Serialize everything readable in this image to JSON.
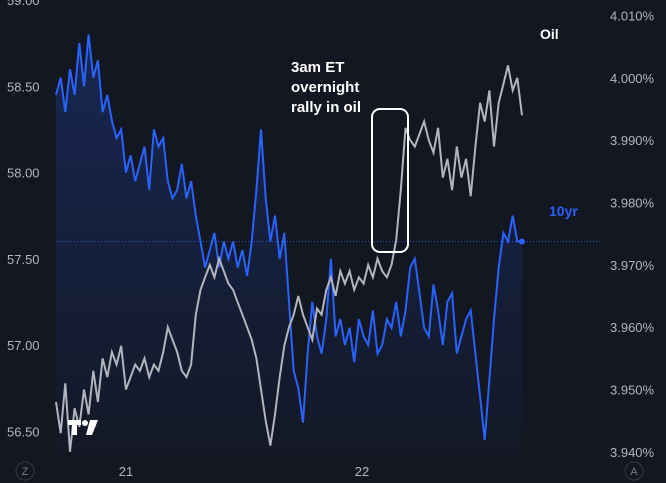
{
  "chart_data": {
    "type": "line",
    "left_axis": {
      "min": 56.2,
      "max": 59.0,
      "ticks": [
        "59.00",
        "58.50",
        "58.00",
        "57.50",
        "57.00",
        "56.50"
      ],
      "tick_values": [
        59.0,
        58.5,
        58.0,
        57.5,
        57.0,
        56.5
      ]
    },
    "right_axis": {
      "min": 3.935,
      "max": 4.0125,
      "ticks": [
        "4.010%",
        "4.000%",
        "3.990%",
        "3.980%",
        "3.970%",
        "3.960%",
        "3.950%",
        "3.940%"
      ],
      "tick_values": [
        4.01,
        4.0,
        3.99,
        3.98,
        3.97,
        3.96,
        3.95,
        3.94
      ]
    },
    "x_labels": [
      "21",
      "22"
    ],
    "annotation": [
      "3am ET",
      "overnight",
      "rally in oil"
    ],
    "series": [
      {
        "name": "10yr",
        "axis": "left",
        "color": "#2962ff",
        "last_value": 57.6,
        "points": [
          [
            0.0,
            58.45
          ],
          [
            0.01,
            58.55
          ],
          [
            0.02,
            58.35
          ],
          [
            0.03,
            58.6
          ],
          [
            0.04,
            58.45
          ],
          [
            0.05,
            58.75
          ],
          [
            0.06,
            58.5
          ],
          [
            0.07,
            58.8
          ],
          [
            0.08,
            58.55
          ],
          [
            0.09,
            58.65
          ],
          [
            0.1,
            58.35
          ],
          [
            0.11,
            58.45
          ],
          [
            0.12,
            58.3
          ],
          [
            0.13,
            58.2
          ],
          [
            0.14,
            58.25
          ],
          [
            0.15,
            58.0
          ],
          [
            0.16,
            58.1
          ],
          [
            0.17,
            57.95
          ],
          [
            0.18,
            58.05
          ],
          [
            0.19,
            58.15
          ],
          [
            0.2,
            57.9
          ],
          [
            0.21,
            58.25
          ],
          [
            0.22,
            58.15
          ],
          [
            0.23,
            58.2
          ],
          [
            0.24,
            57.95
          ],
          [
            0.25,
            57.85
          ],
          [
            0.26,
            57.9
          ],
          [
            0.27,
            58.05
          ],
          [
            0.28,
            57.85
          ],
          [
            0.29,
            57.95
          ],
          [
            0.3,
            57.75
          ],
          [
            0.31,
            57.6
          ],
          [
            0.32,
            57.45
          ],
          [
            0.33,
            57.55
          ],
          [
            0.34,
            57.65
          ],
          [
            0.35,
            57.45
          ],
          [
            0.36,
            57.6
          ],
          [
            0.37,
            57.5
          ],
          [
            0.38,
            57.6
          ],
          [
            0.39,
            57.45
          ],
          [
            0.4,
            57.55
          ],
          [
            0.41,
            57.4
          ],
          [
            0.42,
            57.6
          ],
          [
            0.43,
            57.9
          ],
          [
            0.44,
            58.25
          ],
          [
            0.45,
            57.85
          ],
          [
            0.46,
            57.6
          ],
          [
            0.47,
            57.75
          ],
          [
            0.48,
            57.5
          ],
          [
            0.49,
            57.65
          ],
          [
            0.5,
            57.25
          ],
          [
            0.51,
            56.85
          ],
          [
            0.52,
            56.75
          ],
          [
            0.53,
            56.55
          ],
          [
            0.54,
            56.95
          ],
          [
            0.55,
            57.25
          ],
          [
            0.56,
            57.05
          ],
          [
            0.57,
            56.95
          ],
          [
            0.58,
            57.15
          ],
          [
            0.59,
            57.5
          ],
          [
            0.6,
            57.05
          ],
          [
            0.61,
            57.15
          ],
          [
            0.62,
            57.0
          ],
          [
            0.63,
            57.1
          ],
          [
            0.64,
            56.9
          ],
          [
            0.65,
            57.15
          ],
          [
            0.66,
            57.05
          ],
          [
            0.67,
            57.0
          ],
          [
            0.68,
            57.2
          ],
          [
            0.69,
            56.95
          ],
          [
            0.7,
            57.0
          ],
          [
            0.71,
            57.15
          ],
          [
            0.72,
            57.1
          ],
          [
            0.73,
            57.25
          ],
          [
            0.74,
            57.05
          ],
          [
            0.75,
            57.2
          ],
          [
            0.76,
            57.45
          ],
          [
            0.77,
            57.5
          ],
          [
            0.78,
            57.3
          ],
          [
            0.79,
            57.1
          ],
          [
            0.8,
            57.05
          ],
          [
            0.81,
            57.35
          ],
          [
            0.82,
            57.2
          ],
          [
            0.83,
            57.0
          ],
          [
            0.84,
            57.25
          ],
          [
            0.85,
            57.3
          ],
          [
            0.86,
            56.95
          ],
          [
            0.87,
            57.05
          ],
          [
            0.88,
            57.15
          ],
          [
            0.89,
            57.2
          ],
          [
            0.9,
            56.95
          ],
          [
            0.91,
            56.7
          ],
          [
            0.92,
            56.45
          ],
          [
            0.93,
            56.8
          ],
          [
            0.94,
            57.15
          ],
          [
            0.95,
            57.45
          ],
          [
            0.96,
            57.65
          ],
          [
            0.97,
            57.6
          ],
          [
            0.98,
            57.75
          ],
          [
            0.99,
            57.6
          ],
          [
            1.0,
            57.6
          ]
        ]
      },
      {
        "name": "Oil",
        "axis": "right",
        "color": "#b2b5be",
        "points": [
          [
            0.0,
            3.948
          ],
          [
            0.01,
            3.943
          ],
          [
            0.02,
            3.951
          ],
          [
            0.03,
            3.94
          ],
          [
            0.04,
            3.947
          ],
          [
            0.05,
            3.944
          ],
          [
            0.06,
            3.95
          ],
          [
            0.07,
            3.946
          ],
          [
            0.08,
            3.953
          ],
          [
            0.09,
            3.948
          ],
          [
            0.1,
            3.955
          ],
          [
            0.11,
            3.952
          ],
          [
            0.12,
            3.956
          ],
          [
            0.13,
            3.954
          ],
          [
            0.14,
            3.957
          ],
          [
            0.15,
            3.95
          ],
          [
            0.16,
            3.952
          ],
          [
            0.17,
            3.954
          ],
          [
            0.18,
            3.953
          ],
          [
            0.19,
            3.955
          ],
          [
            0.2,
            3.952
          ],
          [
            0.21,
            3.954
          ],
          [
            0.22,
            3.953
          ],
          [
            0.23,
            3.956
          ],
          [
            0.24,
            3.96
          ],
          [
            0.25,
            3.958
          ],
          [
            0.26,
            3.956
          ],
          [
            0.27,
            3.953
          ],
          [
            0.28,
            3.952
          ],
          [
            0.29,
            3.954
          ],
          [
            0.3,
            3.962
          ],
          [
            0.31,
            3.966
          ],
          [
            0.32,
            3.968
          ],
          [
            0.33,
            3.97
          ],
          [
            0.34,
            3.968
          ],
          [
            0.35,
            3.971
          ],
          [
            0.36,
            3.969
          ],
          [
            0.37,
            3.967
          ],
          [
            0.38,
            3.966
          ],
          [
            0.39,
            3.964
          ],
          [
            0.4,
            3.962
          ],
          [
            0.41,
            3.96
          ],
          [
            0.42,
            3.958
          ],
          [
            0.43,
            3.955
          ],
          [
            0.44,
            3.95
          ],
          [
            0.45,
            3.945
          ],
          [
            0.46,
            3.941
          ],
          [
            0.47,
            3.946
          ],
          [
            0.48,
            3.952
          ],
          [
            0.49,
            3.957
          ],
          [
            0.5,
            3.96
          ],
          [
            0.51,
            3.962
          ],
          [
            0.52,
            3.965
          ],
          [
            0.53,
            3.962
          ],
          [
            0.54,
            3.96
          ],
          [
            0.55,
            3.958
          ],
          [
            0.56,
            3.963
          ],
          [
            0.57,
            3.962
          ],
          [
            0.58,
            3.966
          ],
          [
            0.59,
            3.968
          ],
          [
            0.6,
            3.965
          ],
          [
            0.61,
            3.969
          ],
          [
            0.62,
            3.967
          ],
          [
            0.63,
            3.969
          ],
          [
            0.64,
            3.966
          ],
          [
            0.65,
            3.968
          ],
          [
            0.66,
            3.967
          ],
          [
            0.67,
            3.97
          ],
          [
            0.68,
            3.968
          ],
          [
            0.69,
            3.971
          ],
          [
            0.7,
            3.969
          ],
          [
            0.71,
            3.968
          ],
          [
            0.72,
            3.97
          ],
          [
            0.73,
            3.974
          ],
          [
            0.74,
            3.982
          ],
          [
            0.75,
            3.992
          ],
          [
            0.76,
            3.99
          ],
          [
            0.77,
            3.989
          ],
          [
            0.78,
            3.991
          ],
          [
            0.79,
            3.993
          ],
          [
            0.8,
            3.99
          ],
          [
            0.81,
            3.988
          ],
          [
            0.82,
            3.992
          ],
          [
            0.83,
            3.984
          ],
          [
            0.84,
            3.987
          ],
          [
            0.85,
            3.982
          ],
          [
            0.86,
            3.989
          ],
          [
            0.87,
            3.984
          ],
          [
            0.88,
            3.987
          ],
          [
            0.89,
            3.981
          ],
          [
            0.9,
            3.989
          ],
          [
            0.91,
            3.996
          ],
          [
            0.92,
            3.993
          ],
          [
            0.93,
            3.998
          ],
          [
            0.94,
            3.989
          ],
          [
            0.95,
            3.996
          ],
          [
            0.96,
            3.999
          ],
          [
            0.97,
            4.002
          ],
          [
            0.98,
            3.998
          ],
          [
            0.99,
            4.0
          ],
          [
            1.0,
            3.994
          ]
        ]
      }
    ],
    "grid": false,
    "reference_line": {
      "axis": "left",
      "value": 57.6
    }
  },
  "ui": {
    "corner_left": "Z",
    "corner_right": "A",
    "colors": {
      "background": "#131722",
      "text": "#b2b5be",
      "accent": "#2962ff"
    }
  }
}
